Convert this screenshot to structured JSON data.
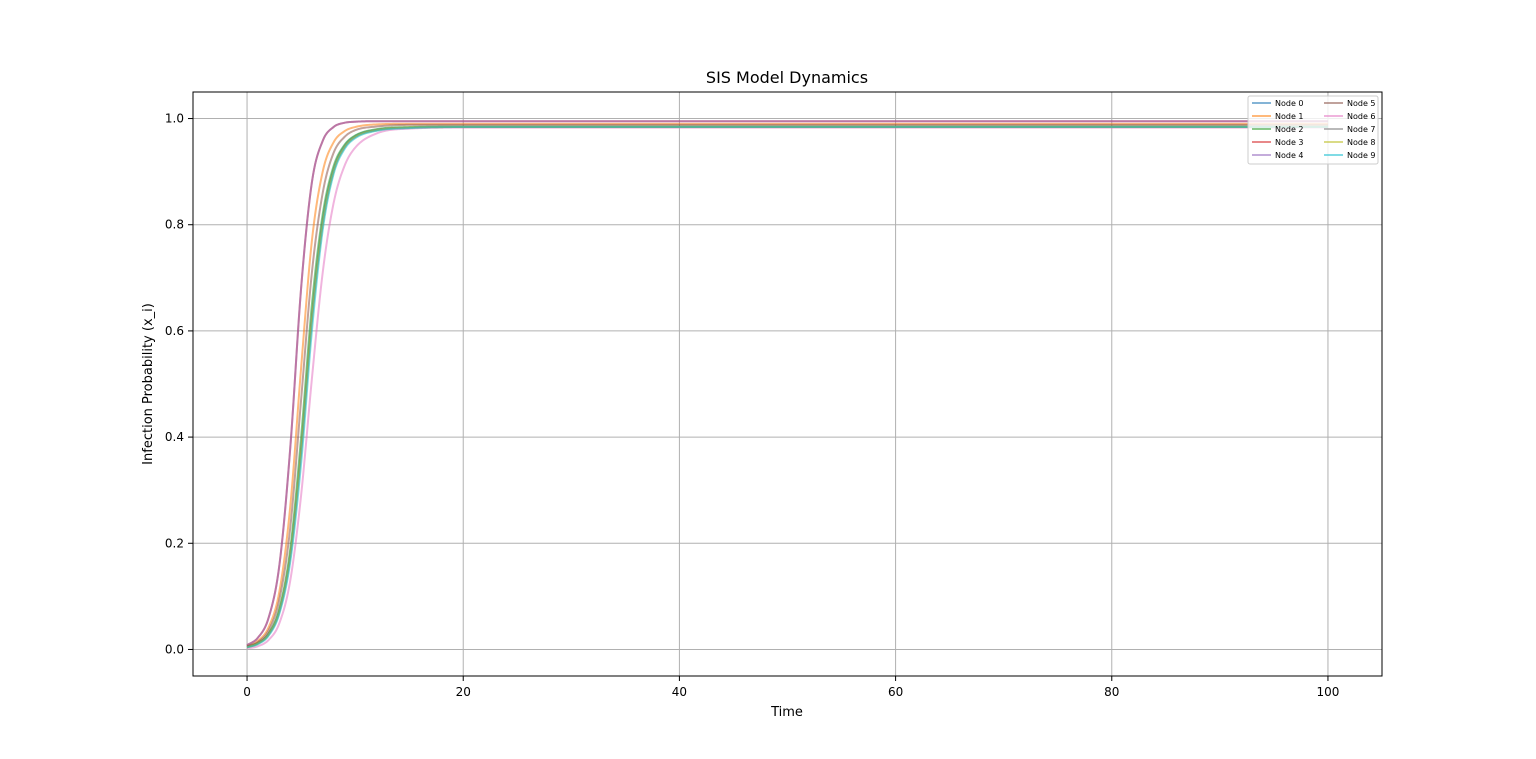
{
  "chart_data": {
    "type": "line",
    "title": "SIS Model Dynamics",
    "xlabel": "Time",
    "ylabel": "Infection Probability (x_i)",
    "xlim": [
      -5,
      105
    ],
    "ylim": [
      -0.05,
      1.05
    ],
    "xticks": [
      0,
      20,
      40,
      60,
      80,
      100
    ],
    "xtick_labels": [
      "0",
      "20",
      "40",
      "60",
      "80",
      "100"
    ],
    "yticks": [
      0.0,
      0.2,
      0.4,
      0.6,
      0.8,
      1.0
    ],
    "ytick_labels": [
      "0.0",
      "0.2",
      "0.4",
      "0.6",
      "0.8",
      "1.0"
    ],
    "grid": true,
    "legend_position": "top-right",
    "legend_columns": 2,
    "series": [
      {
        "name": "Node 0",
        "color": "#1f77b4",
        "points": [
          [
            0,
            0.005
          ],
          [
            1,
            0.012
          ],
          [
            2,
            0.03
          ],
          [
            3,
            0.075
          ],
          [
            4,
            0.18
          ],
          [
            5,
            0.38
          ],
          [
            6,
            0.63
          ],
          [
            7,
            0.81
          ],
          [
            8,
            0.905
          ],
          [
            9,
            0.948
          ],
          [
            10,
            0.967
          ],
          [
            12,
            0.979
          ],
          [
            15,
            0.983
          ],
          [
            20,
            0.984
          ],
          [
            100,
            0.984
          ]
        ]
      },
      {
        "name": "Node 1",
        "color": "#ff7f0e",
        "points": [
          [
            0,
            0.006
          ],
          [
            1,
            0.016
          ],
          [
            2,
            0.042
          ],
          [
            3,
            0.11
          ],
          [
            4,
            0.27
          ],
          [
            5,
            0.53
          ],
          [
            6,
            0.77
          ],
          [
            7,
            0.9
          ],
          [
            8,
            0.955
          ],
          [
            9,
            0.976
          ],
          [
            10,
            0.984
          ],
          [
            12,
            0.989
          ],
          [
            15,
            0.99
          ],
          [
            20,
            0.99
          ],
          [
            100,
            0.99
          ]
        ]
      },
      {
        "name": "Node 2",
        "color": "#2ca02c",
        "points": [
          [
            0,
            0.005
          ],
          [
            1,
            0.012
          ],
          [
            2,
            0.03
          ],
          [
            3,
            0.078
          ],
          [
            4,
            0.19
          ],
          [
            5,
            0.4
          ],
          [
            6,
            0.65
          ],
          [
            7,
            0.82
          ],
          [
            8,
            0.91
          ],
          [
            9,
            0.95
          ],
          [
            10,
            0.968
          ],
          [
            12,
            0.98
          ],
          [
            15,
            0.984
          ],
          [
            20,
            0.985
          ],
          [
            100,
            0.985
          ]
        ]
      },
      {
        "name": "Node 3",
        "color": "#d62728",
        "points": [
          [
            0,
            0.008
          ],
          [
            1,
            0.022
          ],
          [
            2,
            0.06
          ],
          [
            3,
            0.16
          ],
          [
            4,
            0.38
          ],
          [
            5,
            0.68
          ],
          [
            6,
            0.88
          ],
          [
            7,
            0.958
          ],
          [
            8,
            0.984
          ],
          [
            9,
            0.992
          ],
          [
            10,
            0.994
          ],
          [
            12,
            0.995
          ],
          [
            20,
            0.995
          ],
          [
            100,
            0.995
          ]
        ]
      },
      {
        "name": "Node 4",
        "color": "#9467bd",
        "points": [
          [
            0,
            0.008
          ],
          [
            1,
            0.022
          ],
          [
            2,
            0.06
          ],
          [
            3,
            0.16
          ],
          [
            4,
            0.38
          ],
          [
            5,
            0.68
          ],
          [
            6,
            0.88
          ],
          [
            7,
            0.958
          ],
          [
            8,
            0.984
          ],
          [
            9,
            0.992
          ],
          [
            10,
            0.994
          ],
          [
            12,
            0.995
          ],
          [
            20,
            0.995
          ],
          [
            100,
            0.995
          ]
        ]
      },
      {
        "name": "Node 5",
        "color": "#8c564b",
        "points": [
          [
            0,
            0.006
          ],
          [
            1,
            0.014
          ],
          [
            2,
            0.036
          ],
          [
            3,
            0.095
          ],
          [
            4,
            0.23
          ],
          [
            5,
            0.47
          ],
          [
            6,
            0.71
          ],
          [
            7,
            0.86
          ],
          [
            8,
            0.935
          ],
          [
            9,
            0.965
          ],
          [
            10,
            0.978
          ],
          [
            12,
            0.985
          ],
          [
            15,
            0.988
          ],
          [
            20,
            0.988
          ],
          [
            100,
            0.988
          ]
        ]
      },
      {
        "name": "Node 6",
        "color": "#e377c2",
        "points": [
          [
            0,
            0.002
          ],
          [
            1,
            0.006
          ],
          [
            2,
            0.018
          ],
          [
            3,
            0.05
          ],
          [
            4,
            0.13
          ],
          [
            5,
            0.29
          ],
          [
            6,
            0.51
          ],
          [
            7,
            0.71
          ],
          [
            8,
            0.84
          ],
          [
            9,
            0.91
          ],
          [
            10,
            0.945
          ],
          [
            12,
            0.972
          ],
          [
            15,
            0.981
          ],
          [
            20,
            0.983
          ],
          [
            100,
            0.983
          ]
        ]
      },
      {
        "name": "Node 7",
        "color": "#7f7f7f",
        "points": [
          [
            0,
            0.004
          ],
          [
            1,
            0.011
          ],
          [
            2,
            0.028
          ],
          [
            3,
            0.072
          ],
          [
            4,
            0.175
          ],
          [
            5,
            0.37
          ],
          [
            6,
            0.62
          ],
          [
            7,
            0.8
          ],
          [
            8,
            0.9
          ],
          [
            9,
            0.945
          ],
          [
            10,
            0.965
          ],
          [
            12,
            0.978
          ],
          [
            15,
            0.983
          ],
          [
            20,
            0.984
          ],
          [
            100,
            0.984
          ]
        ]
      },
      {
        "name": "Node 8",
        "color": "#bcbd22",
        "points": [
          [
            0,
            0.004
          ],
          [
            1,
            0.011
          ],
          [
            2,
            0.028
          ],
          [
            3,
            0.072
          ],
          [
            4,
            0.175
          ],
          [
            5,
            0.37
          ],
          [
            6,
            0.62
          ],
          [
            7,
            0.8
          ],
          [
            8,
            0.9
          ],
          [
            9,
            0.945
          ],
          [
            10,
            0.965
          ],
          [
            12,
            0.978
          ],
          [
            15,
            0.983
          ],
          [
            20,
            0.984
          ],
          [
            100,
            0.984
          ]
        ]
      },
      {
        "name": "Node 9",
        "color": "#17becf",
        "points": [
          [
            0,
            0.004
          ],
          [
            1,
            0.01
          ],
          [
            2,
            0.026
          ],
          [
            3,
            0.068
          ],
          [
            4,
            0.165
          ],
          [
            5,
            0.35
          ],
          [
            6,
            0.6
          ],
          [
            7,
            0.79
          ],
          [
            8,
            0.895
          ],
          [
            9,
            0.942
          ],
          [
            10,
            0.963
          ],
          [
            12,
            0.977
          ],
          [
            15,
            0.982
          ],
          [
            20,
            0.984
          ],
          [
            100,
            0.984
          ]
        ]
      }
    ]
  }
}
